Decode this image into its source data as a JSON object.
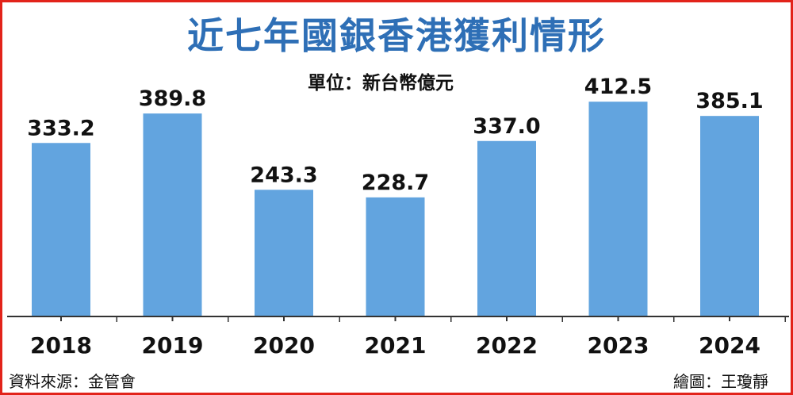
{
  "chart_data": {
    "type": "bar",
    "title": "近七年國銀香港獲利情形",
    "unit": "單位：新台幣億元",
    "categories": [
      "2018",
      "2019",
      "2020",
      "2021",
      "2022",
      "2023",
      "2024"
    ],
    "values": [
      333.2,
      389.8,
      243.3,
      228.7,
      337.0,
      412.5,
      385.1
    ],
    "value_labels": [
      "333.2",
      "389.8",
      "243.3",
      "228.7",
      "337.0",
      "412.5",
      "385.1"
    ],
    "ylim": [
      0,
      450
    ],
    "grid": false,
    "legend": "none",
    "bar_color": "#62a4df",
    "axis_color": "#333333"
  },
  "footer": {
    "source": "資料來源：金管會",
    "credit": "繪圖：王瓊靜"
  },
  "colors": {
    "title": "#2e6fb6",
    "border": "#e2231a"
  }
}
